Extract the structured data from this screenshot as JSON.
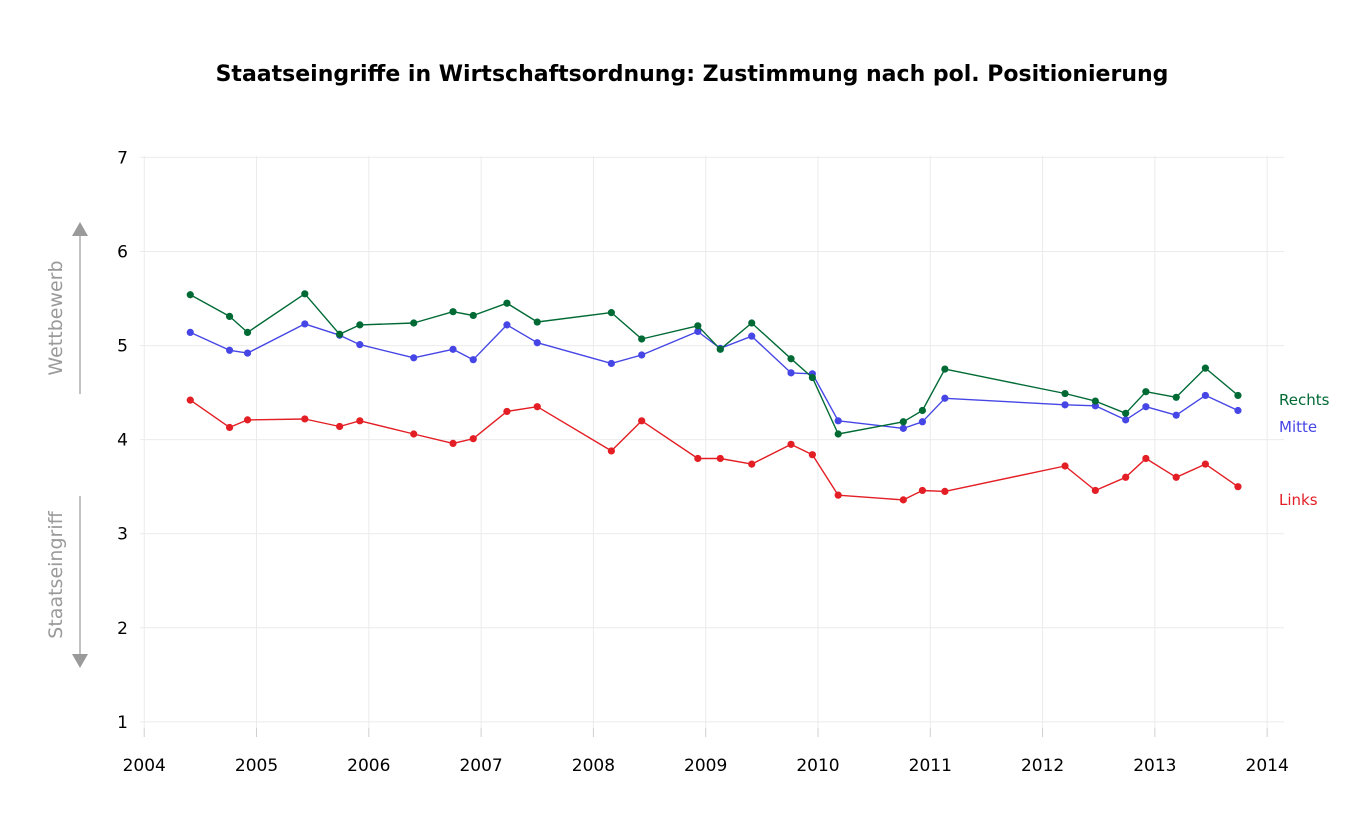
{
  "chart_data": {
    "type": "line",
    "title": "Staatseingriffe in Wirtschaftsordnung: Zustimmung nach pol. Positionierung",
    "xlabel": "",
    "ylabel_top": "Wettbewerb",
    "ylabel_bottom": "Staatseingriff",
    "xlim": [
      2003.9,
      2014.15
    ],
    "ylim": [
      0.85,
      7.1
    ],
    "x_ticks": [
      2004,
      2005,
      2006,
      2007,
      2008,
      2009,
      2010,
      2011,
      2012,
      2013,
      2014
    ],
    "y_ticks": [
      1,
      2,
      3,
      4,
      5,
      6,
      7
    ],
    "grid": true,
    "series": [
      {
        "name": "Rechts",
        "color": "#006a35",
        "x": [
          2004.41,
          2004.76,
          2004.92,
          2005.43,
          2005.74,
          2005.92,
          2006.4,
          2006.75,
          2006.93,
          2007.23,
          2007.5,
          2008.16,
          2008.43,
          2008.93,
          2009.13,
          2009.41,
          2009.76,
          2009.95,
          2010.18,
          2010.76,
          2010.93,
          2011.13,
          2012.2,
          2012.47,
          2012.74,
          2012.92,
          2013.19,
          2013.45,
          2013.74
        ],
        "y": [
          5.54,
          5.31,
          5.14,
          5.55,
          5.12,
          5.22,
          5.24,
          5.36,
          5.32,
          5.45,
          5.25,
          5.35,
          5.07,
          5.21,
          4.96,
          5.24,
          4.86,
          4.66,
          4.06,
          4.19,
          4.31,
          4.75,
          4.49,
          4.41,
          4.28,
          4.51,
          4.45,
          4.76,
          4.47
        ]
      },
      {
        "name": "Mitte",
        "color": "#4646e6",
        "x": [
          2004.41,
          2004.76,
          2004.92,
          2005.43,
          2005.74,
          2005.92,
          2006.4,
          2006.75,
          2006.93,
          2007.23,
          2007.5,
          2008.16,
          2008.43,
          2008.93,
          2009.13,
          2009.41,
          2009.76,
          2009.95,
          2010.18,
          2010.76,
          2010.93,
          2011.13,
          2012.2,
          2012.47,
          2012.74,
          2012.92,
          2013.19,
          2013.45,
          2013.74
        ],
        "y": [
          5.14,
          4.95,
          4.92,
          5.23,
          5.11,
          5.01,
          4.87,
          4.96,
          4.85,
          5.22,
          5.03,
          4.81,
          4.9,
          5.15,
          4.97,
          5.1,
          4.71,
          4.7,
          4.2,
          4.12,
          4.19,
          4.44,
          4.37,
          4.36,
          4.21,
          4.35,
          4.26,
          4.47,
          4.31
        ]
      },
      {
        "name": "Links",
        "color": "#e31e24",
        "x": [
          2004.41,
          2004.76,
          2004.92,
          2005.43,
          2005.74,
          2005.92,
          2006.4,
          2006.75,
          2006.93,
          2007.23,
          2007.5,
          2008.16,
          2008.43,
          2008.93,
          2009.13,
          2009.41,
          2009.76,
          2009.95,
          2010.18,
          2010.76,
          2010.93,
          2011.13,
          2012.2,
          2012.47,
          2012.74,
          2012.92,
          2013.19,
          2013.45,
          2013.74
        ],
        "y": [
          4.42,
          4.13,
          4.21,
          4.22,
          4.14,
          4.2,
          4.06,
          3.96,
          4.01,
          4.3,
          4.35,
          3.88,
          4.2,
          3.8,
          3.8,
          3.74,
          3.95,
          3.84,
          3.41,
          3.36,
          3.46,
          3.45,
          3.72,
          3.46,
          3.6,
          3.8,
          3.6,
          3.74,
          3.5
        ]
      }
    ]
  }
}
